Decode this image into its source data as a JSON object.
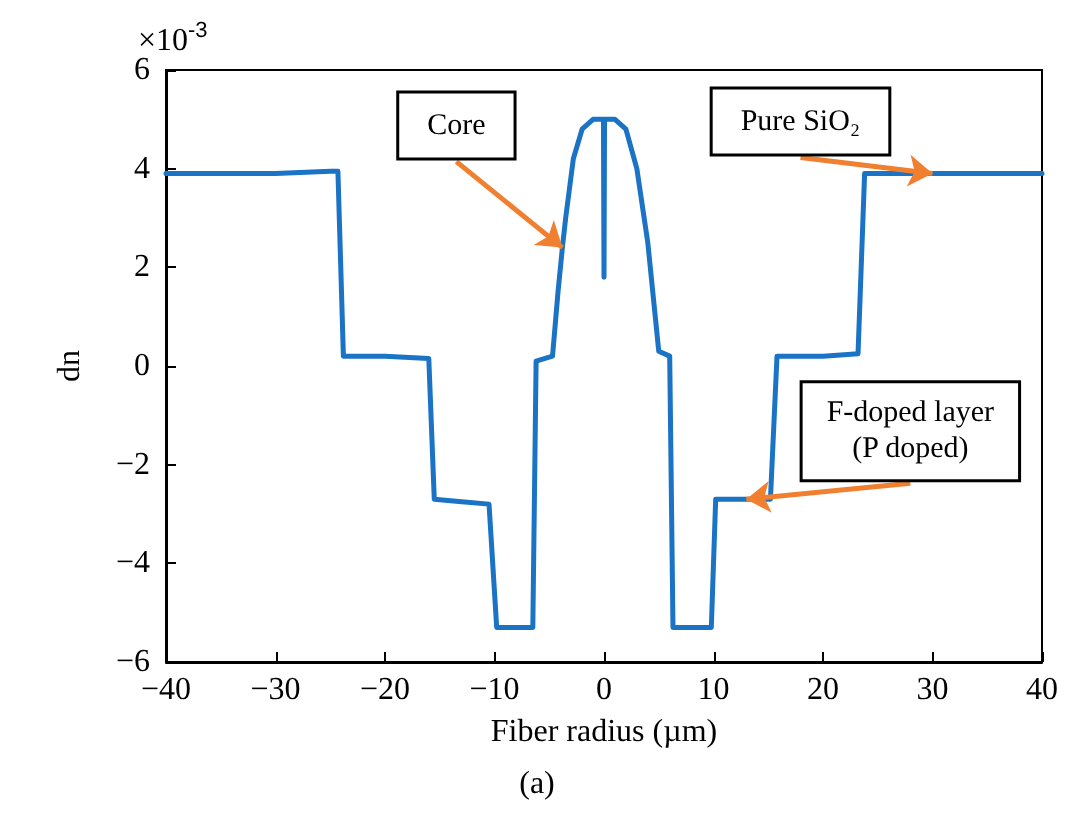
{
  "chart_data": {
    "type": "line",
    "xlabel": "Fiber radius (µm)",
    "ylabel": "dn",
    "x": [
      -40,
      -30,
      -25,
      -24.3,
      -23.8,
      -20,
      -16,
      -15.5,
      -13,
      -10.5,
      -9.8,
      -8,
      -6.5,
      -6.2,
      -4.7,
      -4.2,
      -3.8,
      -3.5,
      -2.8,
      -2,
      -1,
      -0.05,
      0,
      0.05,
      1,
      2,
      3,
      4,
      5,
      6,
      6.3,
      8,
      9.8,
      10.2,
      13,
      15.2,
      15.8,
      20,
      23.2,
      23.8,
      30,
      40
    ],
    "series": [
      {
        "color": "#1a73c4",
        "values": [
          3.9,
          3.9,
          3.95,
          3.95,
          0.2,
          0.2,
          0.15,
          -2.7,
          -2.75,
          -2.8,
          -5.3,
          -5.3,
          -5.3,
          0.1,
          0.2,
          1.5,
          2.4,
          3,
          4.2,
          4.8,
          5,
          5,
          1.8,
          5,
          5,
          4.8,
          4,
          2.5,
          0.3,
          0.2,
          -5.3,
          -5.3,
          -5.3,
          -2.7,
          -2.7,
          -2.7,
          0.2,
          0.2,
          0.25,
          3.9,
          3.9,
          3.9
        ]
      }
    ],
    "xlim": [
      -40,
      40
    ],
    "xticks": [
      -40,
      -30,
      -20,
      -10,
      0,
      10,
      20,
      30,
      40
    ],
    "ylim": [
      -6,
      6
    ],
    "yticks": [
      -6,
      -4,
      -2,
      0,
      2,
      4,
      6
    ],
    "marker": "none",
    "line_style": "solid",
    "grid": false,
    "annotations": [
      "×10$^{-3}$",
      "(a)",
      {
        "text": "Core",
        "x": -3.8,
        "y": 2.4
      },
      {
        "text": "Pure SiO₂",
        "x": 30,
        "y": 3.9
      },
      {
        "text": "F-doped layer\n(P doped)",
        "x": 13,
        "y": -2.7
      }
    ]
  }
}
